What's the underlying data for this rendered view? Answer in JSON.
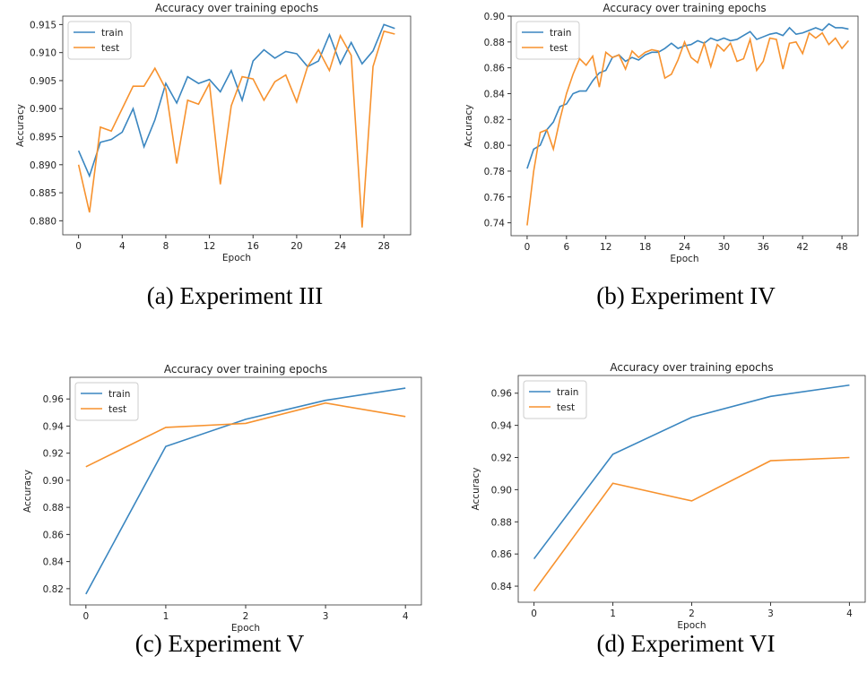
{
  "chart_data": [
    {
      "type": "line",
      "title": "Accuracy over training epochs",
      "xlabel": "Epoch",
      "ylabel": "Accuracy",
      "caption": "(a) Experiment III",
      "x": [
        0,
        1,
        2,
        3,
        4,
        5,
        6,
        7,
        8,
        9,
        10,
        11,
        12,
        13,
        14,
        15,
        16,
        17,
        18,
        19,
        20,
        21,
        22,
        23,
        24,
        25,
        26,
        27,
        28,
        29
      ],
      "xlim": [
        -1.45,
        30.45
      ],
      "xticks": [
        0,
        4,
        8,
        12,
        16,
        20,
        24,
        28
      ],
      "ylim": [
        0.8775,
        0.9165
      ],
      "yticks": [
        {
          "value": 0.88,
          "label": "0.880"
        },
        0.885,
        {
          "value": 0.89,
          "label": "0.890"
        },
        0.895,
        {
          "value": 0.9,
          "label": "0.900"
        },
        0.905,
        {
          "value": 0.91,
          "label": "0.910"
        },
        0.915
      ],
      "legend": "upper left",
      "series": [
        {
          "name": "train",
          "color": "#3a86c0",
          "values": [
            0.8925,
            0.888,
            0.894,
            0.8945,
            0.8958,
            0.9,
            0.8932,
            0.898,
            0.9045,
            0.901,
            0.9057,
            0.9045,
            0.9052,
            0.903,
            0.9068,
            0.9015,
            0.9085,
            0.9105,
            0.909,
            0.9102,
            0.9098,
            0.9075,
            0.9085,
            0.9132,
            0.908,
            0.9118,
            0.908,
            0.9103,
            0.915,
            0.9143
          ]
        },
        {
          "name": "test",
          "color": "#f7922e",
          "values": [
            0.89,
            0.8815,
            0.8967,
            0.896,
            0.9,
            0.904,
            0.904,
            0.9072,
            0.9035,
            0.8902,
            0.9015,
            0.9008,
            0.9045,
            0.8865,
            0.9005,
            0.9057,
            0.9053,
            0.9015,
            0.9048,
            0.906,
            0.9012,
            0.9075,
            0.9105,
            0.9068,
            0.913,
            0.9095,
            0.8788,
            0.9075,
            0.9138,
            0.9133
          ]
        }
      ]
    },
    {
      "type": "line",
      "title": "Accuracy over training epochs",
      "xlabel": "Epoch",
      "ylabel": "Accuracy",
      "caption": "(b) Experiment IV",
      "x": [
        0,
        1,
        2,
        3,
        4,
        5,
        6,
        7,
        8,
        9,
        10,
        11,
        12,
        13,
        14,
        15,
        16,
        17,
        18,
        19,
        20,
        21,
        22,
        23,
        24,
        25,
        26,
        27,
        28,
        29,
        30,
        31,
        32,
        33,
        34,
        35,
        36,
        37,
        38,
        39,
        40,
        41,
        42,
        43,
        44,
        45,
        46,
        47,
        48,
        49
      ],
      "xlim": [
        -2.45,
        50.45
      ],
      "xticks": [
        0,
        6,
        12,
        18,
        24,
        30,
        36,
        42,
        48
      ],
      "ylim": [
        0.73,
        0.9
      ],
      "yticks": [
        0.74,
        0.76,
        0.78,
        {
          "value": 0.8,
          "label": "0.80"
        },
        0.82,
        0.84,
        0.86,
        0.88,
        {
          "value": 0.9,
          "label": "0.90"
        }
      ],
      "legend": "upper left",
      "series": [
        {
          "name": "train",
          "color": "#3a86c0",
          "values": [
            0.782,
            0.797,
            0.8,
            0.812,
            0.818,
            0.83,
            0.832,
            0.84,
            0.842,
            0.842,
            0.85,
            0.856,
            0.858,
            0.868,
            0.87,
            0.865,
            0.868,
            0.866,
            0.87,
            0.872,
            0.872,
            0.875,
            0.879,
            0.875,
            0.877,
            0.878,
            0.881,
            0.879,
            0.883,
            0.881,
            0.883,
            0.881,
            0.882,
            0.885,
            0.888,
            0.882,
            0.884,
            0.886,
            0.887,
            0.885,
            0.891,
            0.886,
            0.887,
            0.889,
            0.891,
            0.889,
            0.894,
            0.891,
            0.891,
            0.89
          ]
        },
        {
          "name": "test",
          "color": "#f7922e",
          "values": [
            0.738,
            0.78,
            0.81,
            0.812,
            0.797,
            0.82,
            0.84,
            0.855,
            0.867,
            0.862,
            0.869,
            0.845,
            0.872,
            0.868,
            0.87,
            0.859,
            0.873,
            0.868,
            0.872,
            0.874,
            0.873,
            0.852,
            0.855,
            0.866,
            0.88,
            0.868,
            0.864,
            0.879,
            0.861,
            0.878,
            0.873,
            0.879,
            0.865,
            0.867,
            0.882,
            0.858,
            0.865,
            0.883,
            0.882,
            0.859,
            0.879,
            0.88,
            0.871,
            0.887,
            0.883,
            0.887,
            0.878,
            0.883,
            0.875,
            0.881
          ]
        }
      ]
    },
    {
      "type": "line",
      "title": "Accuracy over training epochs",
      "xlabel": "Epoch",
      "ylabel": "Accuracy",
      "caption": "(c) Experiment V",
      "x": [
        0,
        1,
        2,
        3,
        4
      ],
      "xlim": [
        -0.2,
        4.2
      ],
      "xticks": [
        0,
        1,
        2,
        3,
        4
      ],
      "ylim": [
        0.808,
        0.976
      ],
      "yticks": [
        0.82,
        0.84,
        0.86,
        0.88,
        {
          "value": 0.9,
          "label": "0.90"
        },
        0.92,
        0.94,
        0.96
      ],
      "legend": "upper left",
      "series": [
        {
          "name": "train",
          "color": "#3a86c0",
          "values": [
            0.816,
            0.925,
            0.945,
            0.959,
            0.968
          ]
        },
        {
          "name": "test",
          "color": "#f7922e",
          "values": [
            0.91,
            0.939,
            0.942,
            0.957,
            0.947
          ]
        }
      ]
    },
    {
      "type": "line",
      "title": "Accuracy over training epochs",
      "xlabel": "Epoch",
      "ylabel": "Accuracy",
      "caption": "(d) Experiment VI",
      "x": [
        0,
        1,
        2,
        3,
        4
      ],
      "xlim": [
        -0.2,
        4.2
      ],
      "xticks": [
        0,
        1,
        2,
        3,
        4
      ],
      "ylim": [
        0.83,
        0.971
      ],
      "yticks": [
        0.84,
        0.86,
        0.88,
        {
          "value": 0.9,
          "label": "0.90"
        },
        0.92,
        0.94,
        0.96
      ],
      "legend": "upper left",
      "series": [
        {
          "name": "train",
          "color": "#3a86c0",
          "values": [
            0.857,
            0.922,
            0.945,
            0.958,
            0.965
          ]
        },
        {
          "name": "test",
          "color": "#f7922e",
          "values": [
            0.837,
            0.904,
            0.893,
            0.918,
            0.92
          ]
        }
      ]
    }
  ]
}
